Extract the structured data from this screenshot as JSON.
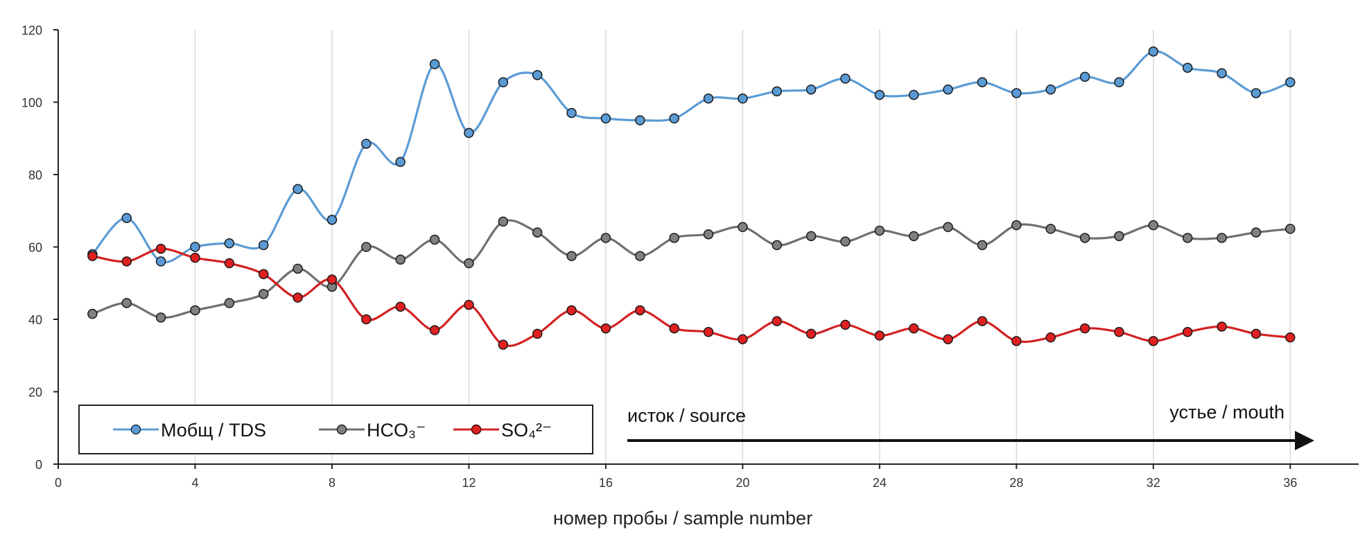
{
  "chart_data": {
    "type": "line",
    "title": "",
    "xlabel": "номер пробы / sample number",
    "ylabel": "",
    "xlim": [
      0,
      38
    ],
    "ylim": [
      0,
      120
    ],
    "xticks": [
      0,
      4,
      8,
      12,
      16,
      20,
      24,
      28,
      32,
      36
    ],
    "yticks": [
      0,
      20,
      40,
      60,
      80,
      100,
      120
    ],
    "grid": "vertical",
    "x": [
      1,
      2,
      3,
      4,
      5,
      6,
      7,
      8,
      9,
      10,
      11,
      12,
      13,
      14,
      15,
      16,
      17,
      18,
      19,
      20,
      21,
      22,
      23,
      24,
      25,
      26,
      27,
      28,
      29,
      30,
      31,
      32,
      33,
      34,
      35,
      36
    ],
    "series": [
      {
        "name": "Мобщ / TDS",
        "color": "#5b9bd5",
        "marker_fill": "#5b9bd5",
        "values": [
          58,
          68,
          56,
          60,
          61,
          60.5,
          76,
          67.5,
          88.5,
          83.5,
          110.5,
          91.5,
          105.5,
          107.5,
          97,
          95.5,
          95,
          95.5,
          101,
          101,
          103,
          103.5,
          106.5,
          102,
          102,
          103.5,
          105.5,
          102.5,
          103.5,
          107,
          105.5,
          114,
          109.5,
          108,
          102.5,
          105.5
        ]
      },
      {
        "name": "HCO₃⁻",
        "color": "#6f6f6f",
        "marker_fill": "#808080",
        "values": [
          41.5,
          44.5,
          40.5,
          42.5,
          44.5,
          47,
          54,
          49,
          60,
          56.5,
          62,
          55.5,
          67,
          64,
          57.5,
          62.5,
          57.5,
          62.5,
          63.5,
          65.5,
          60.5,
          63,
          61.5,
          64.5,
          63,
          65.5,
          60.5,
          66,
          65,
          62.5,
          63,
          66,
          62.5,
          62.5,
          64,
          65
        ]
      },
      {
        "name": "SO₄²⁻",
        "color": "#d42020",
        "marker_fill": "#e02020",
        "values": [
          57.5,
          56,
          59.5,
          57,
          55.5,
          52.5,
          46,
          51,
          40,
          43.5,
          37,
          44,
          33,
          36,
          42.5,
          37.5,
          42.5,
          37.5,
          36.5,
          34.5,
          39.5,
          36,
          38.5,
          35.5,
          37.5,
          34.5,
          39.5,
          34,
          35,
          37.5,
          36.5,
          34,
          36.5,
          38,
          36,
          35
        ]
      }
    ],
    "legend": {
      "position": "bottom-left",
      "entries": [
        "Мобщ / TDS",
        "HCO₃⁻",
        "SO₄²⁻"
      ]
    },
    "annotations": {
      "source": "исток / source",
      "mouth": "устье  / mouth"
    }
  }
}
